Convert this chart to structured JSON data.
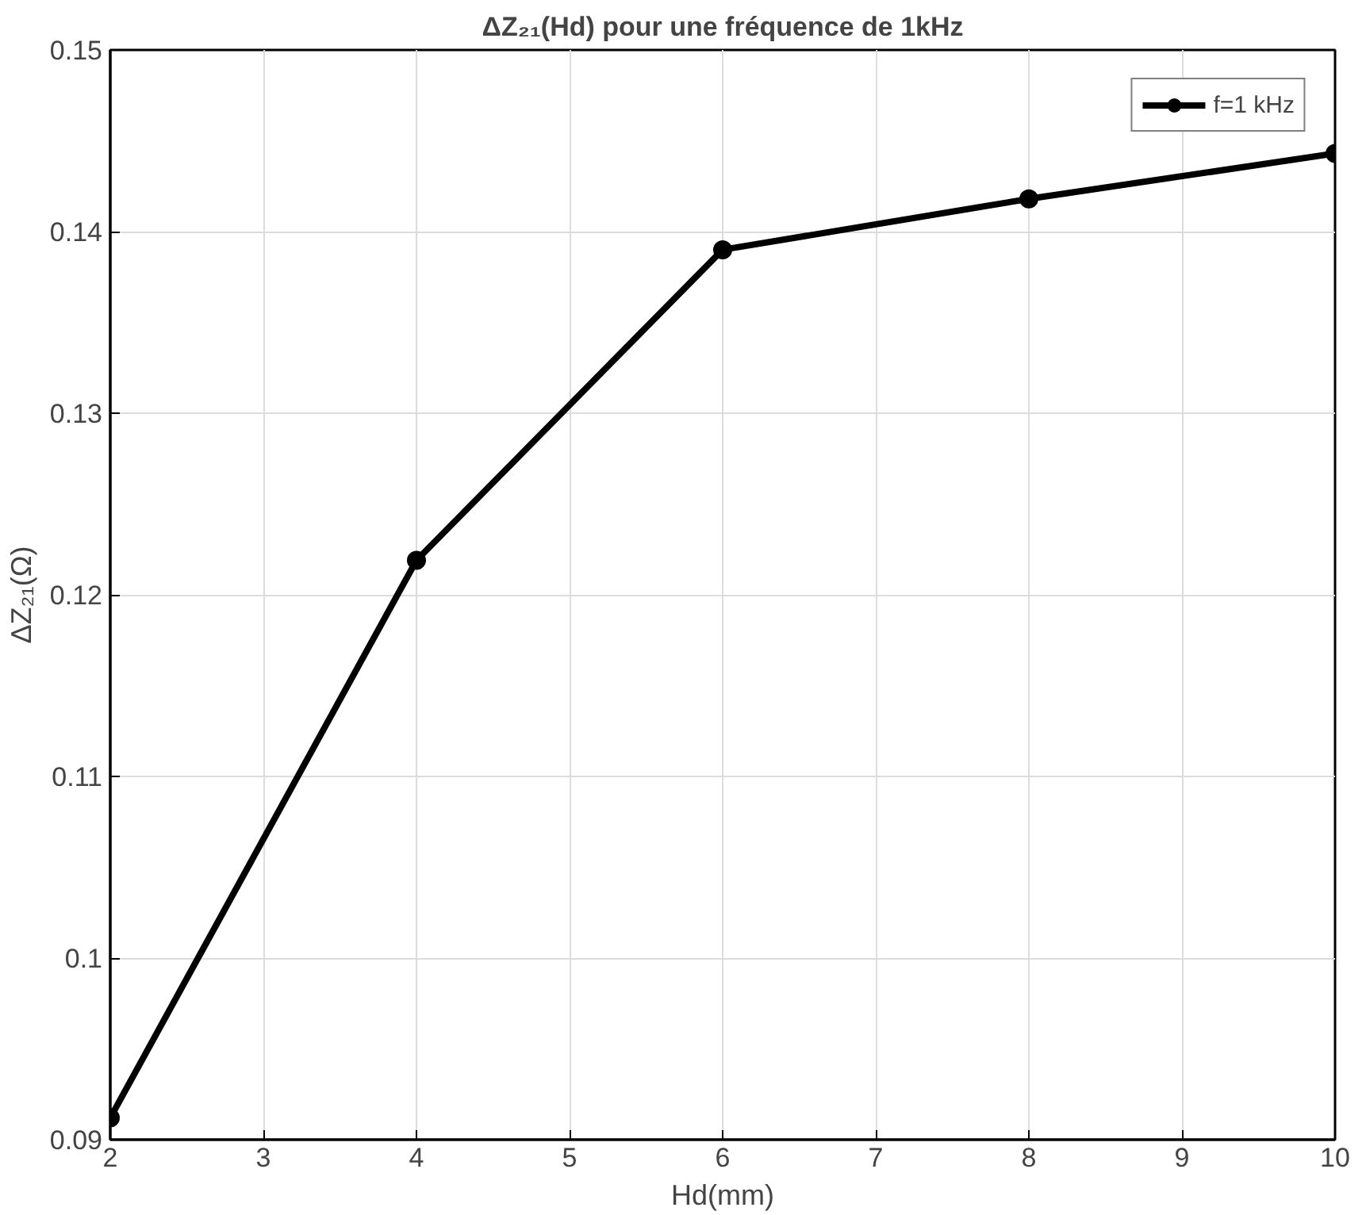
{
  "chart_data": {
    "type": "line",
    "title": "ΔZ₂₁(Hd) pour une fréquence de 1kHz",
    "xlabel": "Hd(mm)",
    "ylabel": "ΔZ₂₁(Ω)",
    "x": [
      2,
      4,
      6,
      8,
      10
    ],
    "series": [
      {
        "name": "f=1 kHz",
        "color": "#000000",
        "values": [
          0.0912,
          0.1219,
          0.139,
          0.1418,
          0.1443
        ]
      }
    ],
    "xlim": [
      2,
      10
    ],
    "xticks": [
      2,
      3,
      4,
      5,
      6,
      7,
      8,
      9,
      10
    ],
    "ylim": [
      0.09,
      0.15
    ],
    "yticks": [
      0.09,
      0.1,
      0.11,
      0.12,
      0.13,
      0.14,
      0.15
    ],
    "grid": true,
    "legend": "top right",
    "marker": "circle",
    "line_style": "solid"
  }
}
